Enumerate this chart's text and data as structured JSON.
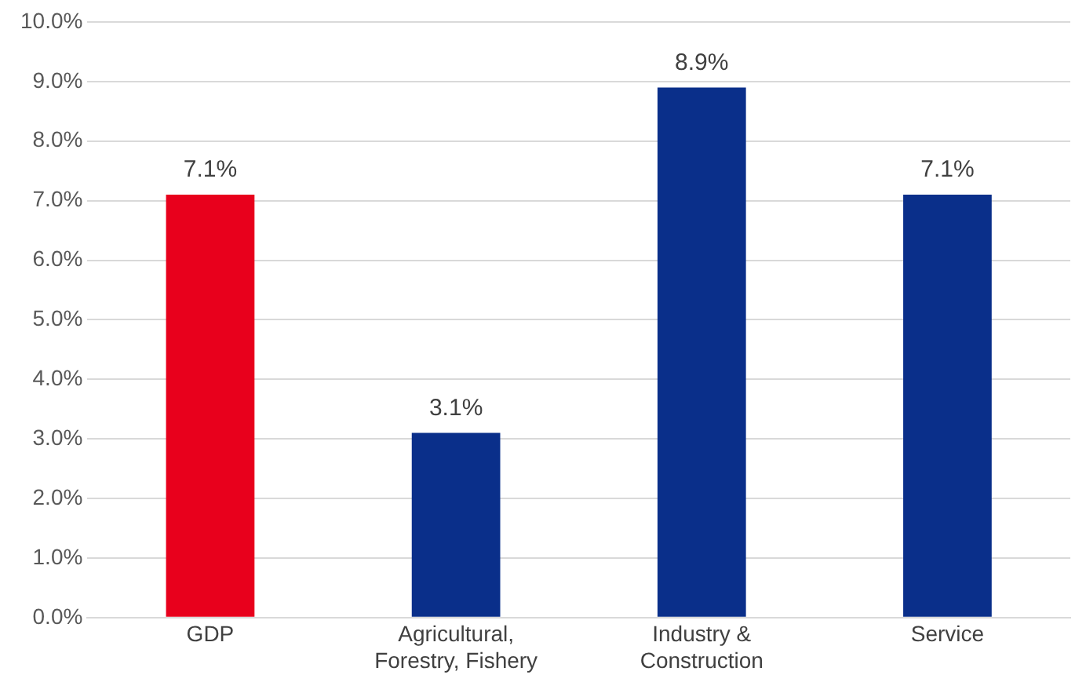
{
  "chart_data": {
    "type": "bar",
    "categories": [
      "GDP",
      "Agricultural, Forestry, Fishery",
      "Industry & Construction",
      "Service"
    ],
    "values": [
      7.1,
      3.1,
      8.9,
      7.1
    ],
    "colors": [
      "#e8001c",
      "#0a2f8a",
      "#0a2f8a",
      "#0a2f8a"
    ],
    "value_labels": [
      "7.1%",
      "3.1%",
      "8.9%",
      "7.1%"
    ],
    "ylim": [
      0,
      10
    ],
    "yticks": [
      {
        "value": 0,
        "label": "0.0%"
      },
      {
        "value": 1,
        "label": "1.0%"
      },
      {
        "value": 2,
        "label": "2.0%"
      },
      {
        "value": 3,
        "label": "3.0%"
      },
      {
        "value": 4,
        "label": "4.0%"
      },
      {
        "value": 5,
        "label": "5.0%"
      },
      {
        "value": 6,
        "label": "6.0%"
      },
      {
        "value": 7,
        "label": "7.0%"
      },
      {
        "value": 8,
        "label": "8.0%"
      },
      {
        "value": 9,
        "label": "9.0%"
      },
      {
        "value": 10,
        "label": "10.0%"
      }
    ],
    "grid": "y"
  }
}
